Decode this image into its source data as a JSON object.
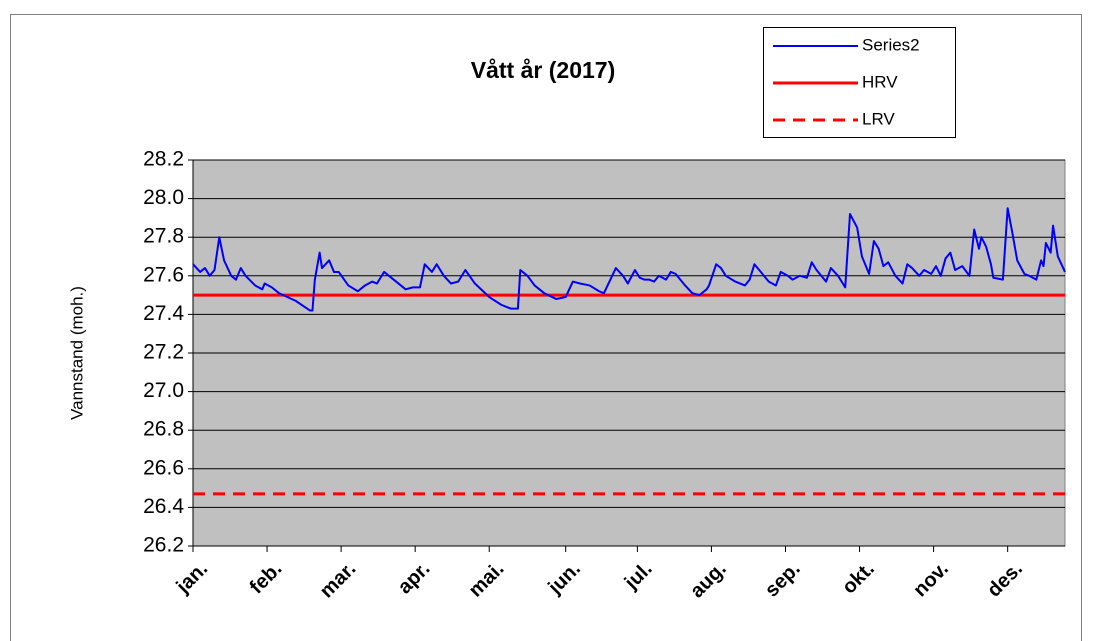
{
  "chart_data": {
    "type": "line",
    "title": "Vått år (2017)",
    "y_label": "Vannstand (moh.)",
    "xlim": [
      0,
      365
    ],
    "xticks": [
      {
        "value": 0,
        "label": "jan."
      },
      {
        "value": 31,
        "label": "feb."
      },
      {
        "value": 62,
        "label": "mar."
      },
      {
        "value": 93,
        "label": "apr."
      },
      {
        "value": 124,
        "label": "mai."
      },
      {
        "value": 156,
        "label": "jun."
      },
      {
        "value": 186,
        "label": "jul."
      },
      {
        "value": 217,
        "label": "aug."
      },
      {
        "value": 248,
        "label": "sep."
      },
      {
        "value": 279,
        "label": "okt."
      },
      {
        "value": 310,
        "label": "nov."
      },
      {
        "value": 341,
        "label": "des."
      }
    ],
    "ylim": [
      26.2,
      28.2
    ],
    "yticks": [
      26.2,
      26.4,
      26.6,
      26.8,
      {
        "value": 27,
        "label": "27.0"
      },
      27.2,
      27.4,
      27.6,
      27.8,
      {
        "value": 28,
        "label": "28.0"
      },
      28.2
    ],
    "grid": true,
    "legend": "top-right",
    "series": [
      {
        "name": "Series2",
        "color": "#0000ff",
        "style": "solid",
        "x": [
          0,
          3,
          5,
          7,
          9,
          11,
          13,
          16,
          18,
          20,
          22,
          26,
          29,
          30,
          33,
          36,
          43,
          49,
          50,
          51,
          53,
          54,
          57,
          59,
          61,
          65,
          69,
          72,
          75,
          77,
          80,
          85,
          89,
          92,
          95,
          97,
          100,
          102,
          105,
          108,
          111,
          114,
          118,
          124,
          129,
          133,
          136,
          137,
          140,
          143,
          147,
          152,
          156,
          159,
          162,
          166,
          170,
          172,
          177,
          180,
          182,
          185,
          187,
          189,
          191,
          193,
          195,
          198,
          200,
          202,
          206,
          209,
          212,
          215,
          216,
          219,
          221,
          223,
          227,
          231,
          233,
          235,
          237,
          241,
          244,
          246,
          249,
          251,
          254,
          257,
          259,
          261,
          265,
          267,
          270,
          273,
          275,
          278,
          280,
          283,
          285,
          287,
          289,
          291,
          294,
          297,
          299,
          301,
          304,
          306,
          309,
          311,
          313,
          315,
          317,
          319,
          322,
          325,
          327,
          329,
          330,
          332,
          334,
          335,
          339,
          341,
          343,
          345,
          348,
          350,
          353,
          355,
          356,
          357,
          359,
          360,
          362,
          365
        ],
        "values": [
          27.66,
          27.62,
          27.64,
          27.6,
          27.63,
          27.8,
          27.68,
          27.6,
          27.58,
          27.64,
          27.6,
          27.55,
          27.53,
          27.56,
          27.54,
          27.51,
          27.47,
          27.42,
          27.42,
          27.58,
          27.72,
          27.64,
          27.68,
          27.62,
          27.62,
          27.55,
          27.52,
          27.55,
          27.57,
          27.56,
          27.62,
          27.57,
          27.53,
          27.54,
          27.54,
          27.66,
          27.62,
          27.66,
          27.6,
          27.56,
          27.57,
          27.63,
          27.56,
          27.49,
          27.45,
          27.43,
          27.43,
          27.63,
          27.6,
          27.55,
          27.51,
          27.48,
          27.49,
          27.57,
          27.56,
          27.55,
          27.52,
          27.51,
          27.64,
          27.6,
          27.56,
          27.63,
          27.59,
          27.58,
          27.58,
          27.57,
          27.6,
          27.58,
          27.62,
          27.61,
          27.55,
          27.51,
          27.5,
          27.53,
          27.55,
          27.66,
          27.64,
          27.6,
          27.57,
          27.55,
          27.58,
          27.66,
          27.63,
          27.57,
          27.55,
          27.62,
          27.6,
          27.58,
          27.6,
          27.59,
          27.67,
          27.63,
          27.57,
          27.64,
          27.6,
          27.54,
          27.92,
          27.85,
          27.7,
          27.61,
          27.78,
          27.74,
          27.65,
          27.67,
          27.6,
          27.56,
          27.66,
          27.64,
          27.6,
          27.63,
          27.61,
          27.65,
          27.6,
          27.69,
          27.72,
          27.63,
          27.65,
          27.6,
          27.84,
          27.74,
          27.8,
          27.75,
          27.66,
          27.59,
          27.58,
          27.95,
          27.82,
          27.68,
          27.61,
          27.6,
          27.58,
          27.68,
          27.65,
          27.77,
          27.72,
          27.86,
          27.7,
          27.62
        ]
      },
      {
        "name": "HRV",
        "color": "#ff0000",
        "style": "solid",
        "x": [
          0,
          365
        ],
        "values": [
          27.5,
          27.5
        ]
      },
      {
        "name": "LRV",
        "color": "#ff0000",
        "style": "dashed",
        "x": [
          0,
          365
        ],
        "values": [
          26.47,
          26.47
        ]
      }
    ]
  }
}
